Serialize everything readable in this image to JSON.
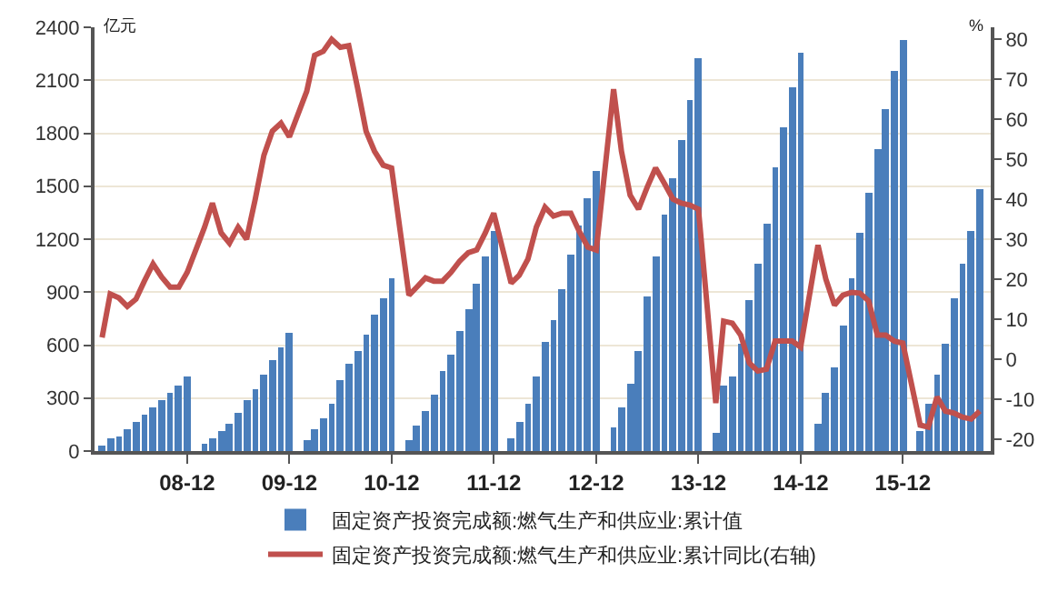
{
  "chart_data": {
    "type": "bar",
    "ylabel": "亿元",
    "y2label": "%",
    "x": [
      "2008-02",
      "2008-03",
      "2008-04",
      "2008-05",
      "2008-06",
      "2008-07",
      "2008-08",
      "2008-09",
      "2008-10",
      "2008-11",
      "2008-12",
      "2009-02",
      "2009-03",
      "2009-04",
      "2009-05",
      "2009-06",
      "2009-07",
      "2009-08",
      "2009-09",
      "2009-10",
      "2009-11",
      "2009-12",
      "2010-02",
      "2010-03",
      "2010-04",
      "2010-05",
      "2010-06",
      "2010-07",
      "2010-08",
      "2010-09",
      "2010-10",
      "2010-11",
      "2010-12",
      "2011-02",
      "2011-03",
      "2011-04",
      "2011-05",
      "2011-06",
      "2011-07",
      "2011-08",
      "2011-09",
      "2011-10",
      "2011-11",
      "2011-12",
      "2012-02",
      "2012-03",
      "2012-04",
      "2012-05",
      "2012-06",
      "2012-07",
      "2012-08",
      "2012-09",
      "2012-10",
      "2012-11",
      "2012-12",
      "2013-02",
      "2013-03",
      "2013-04",
      "2013-05",
      "2013-06",
      "2013-07",
      "2013-08",
      "2013-09",
      "2013-10",
      "2013-11",
      "2013-12",
      "2014-02",
      "2014-03",
      "2014-04",
      "2014-05",
      "2014-06",
      "2014-07",
      "2014-08",
      "2014-09",
      "2014-10",
      "2014-11",
      "2014-12",
      "2015-02",
      "2015-03",
      "2015-04",
      "2015-05",
      "2015-06",
      "2015-07",
      "2015-08",
      "2015-09",
      "2015-10",
      "2015-11",
      "2015-12",
      "2016-02",
      "2016-03",
      "2016-04",
      "2016-05",
      "2016-06",
      "2016-07",
      "2016-08",
      "2016-09"
    ],
    "series": [
      {
        "name": "固定资产投资完成额:燃气生产和供应业:累计值",
        "color": "#4a7ebb",
        "values": [
          35,
          70,
          85,
          120,
          170,
          210,
          250,
          290,
          330,
          370,
          420,
          40,
          70,
          110,
          155,
          220,
          285,
          350,
          430,
          510,
          585,
          665,
          60,
          120,
          190,
          270,
          400,
          490,
          565,
          660,
          770,
          865,
          975,
          65,
          145,
          225,
          320,
          450,
          545,
          675,
          800,
          945,
          1100,
          1250,
          75,
          160,
          270,
          420,
          620,
          745,
          915,
          1110,
          1280,
          1430,
          1585,
          130,
          245,
          380,
          570,
          880,
          1100,
          1335,
          1550,
          1765,
          1985,
          2220,
          105,
          370,
          425,
          610,
          860,
          1060,
          1290,
          1610,
          1830,
          2060,
          2255,
          150,
          325,
          470,
          715,
          975,
          1240,
          1460,
          1710,
          1940,
          2155,
          2330,
          110,
          270,
          430,
          610,
          865,
          1060,
          1250,
          1480
        ]
      },
      {
        "name": "固定资产投资完成额:燃气生产和供应业:累计同比(右轴)",
        "type": "line",
        "axis": "y2",
        "color": "#c0504d",
        "values": [
          5.4,
          16.3,
          15.3,
          13.2,
          15,
          19.5,
          23.8,
          20.5,
          18,
          18,
          21.7,
          33,
          39,
          31.6,
          29,
          33,
          30,
          40,
          51,
          57,
          59,
          55.6,
          67,
          76,
          77,
          80,
          78,
          78.4,
          68,
          57,
          52,
          48.5,
          47.8,
          16,
          18,
          20.3,
          19.5,
          19.5,
          21.7,
          24.5,
          26.6,
          27.3,
          31.6,
          36.5,
          19,
          21,
          25,
          33,
          38,
          35.8,
          36.5,
          36.5,
          32,
          28,
          27.3,
          67.5,
          52,
          41,
          37.5,
          43,
          47.8,
          44,
          40,
          39,
          38.5,
          37.5,
          -11,
          9.5,
          9,
          6,
          -1,
          -3,
          -2.5,
          4.5,
          4.5,
          4.5,
          3,
          28.5,
          20,
          13.5,
          16,
          16.7,
          16.5,
          14.5,
          6,
          6,
          4.5,
          4,
          -16.5,
          -17,
          -9.5,
          -13,
          -13.5,
          -14.5,
          -15,
          -13
        ]
      }
    ],
    "xlim": [
      "2008-01-05",
      "2016-10-10"
    ],
    "xticks": [
      {
        "value": "2008-12",
        "label": "08-12"
      },
      {
        "value": "2009-12",
        "label": "09-12"
      },
      {
        "value": "2010-12",
        "label": "10-12"
      },
      {
        "value": "2011-12",
        "label": "11-12"
      },
      {
        "value": "2012-12",
        "label": "12-12"
      },
      {
        "value": "2013-12",
        "label": "13-12"
      },
      {
        "value": "2014-12",
        "label": "14-12"
      },
      {
        "value": "2015-12",
        "label": "15-12"
      }
    ],
    "ylim": [
      0,
      2400
    ],
    "yticks": [
      0,
      300,
      600,
      900,
      1200,
      1500,
      1800,
      2100,
      2400
    ],
    "y2lim": [
      -23,
      83
    ],
    "y2ticks": [
      -20,
      -10,
      0,
      10,
      20,
      30,
      40,
      50,
      60,
      70,
      80
    ],
    "grid": "y",
    "legend": "bottom",
    "marker": "none",
    "line_style": "solid"
  }
}
